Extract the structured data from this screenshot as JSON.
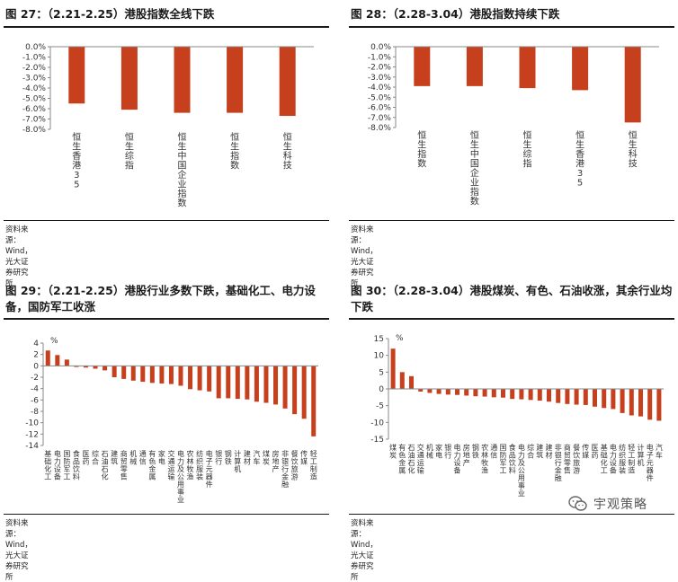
{
  "source_text": "资料来源：Wind，光大证券研究所",
  "watermark": "宇观策略",
  "bar_color": "#c7401e",
  "chart_data": [
    {
      "type": "bar",
      "title": "图 27：（2.21-2.25）港股指数全线下跌",
      "categories": [
        "恒生香港35",
        "恒生综指",
        "恒生中国企业指数",
        "恒生指数",
        "恒生科技"
      ],
      "values": [
        -5.5,
        -6.1,
        -6.4,
        -6.4,
        -6.7
      ],
      "ylim": [
        -8,
        0
      ],
      "yticks": [
        0,
        -1,
        -2,
        -3,
        -4,
        -5,
        -6,
        -7,
        -8
      ],
      "ytick_labels": [
        "0.0%",
        "-1.0%",
        "-2.0%",
        "-3.0%",
        "-4.0%",
        "-5.0%",
        "-6.0%",
        "-7.0%",
        "-8.0%"
      ],
      "xlabel": "",
      "ylabel": ""
    },
    {
      "type": "bar",
      "title": "图 28：（2.28-3.04）港股指数持续下跌",
      "categories": [
        "恒生指数",
        "恒生中国企业指数",
        "恒生综指",
        "恒生香港35",
        "恒生科技"
      ],
      "values": [
        -3.9,
        -3.9,
        -4.1,
        -4.3,
        -7.5
      ],
      "ylim": [
        -8,
        0
      ],
      "yticks": [
        0,
        -1,
        -2,
        -3,
        -4,
        -5,
        -6,
        -7,
        -8
      ],
      "ytick_labels": [
        "0.0%",
        "-1.0%",
        "-2.0%",
        "-3.0%",
        "-4.0%",
        "-5.0%",
        "-6.0%",
        "-7.0%",
        "-8.0%"
      ],
      "xlabel": "",
      "ylabel": ""
    },
    {
      "type": "bar",
      "title": "图 29：（2.21-2.25）港股行业多数下跌，基础化工、电力设备，国防军工收涨",
      "unit": "%",
      "categories": [
        "基础化工",
        "电力设备",
        "国防军工",
        "食品饮料",
        "医药",
        "综合",
        "石油石化",
        "建筑",
        "商贸零售",
        "机械",
        "通信",
        "有色金属",
        "家电",
        "交通运输",
        "电力及公用事业",
        "农林牧渔",
        "纺织服装",
        "电子元器件",
        "银行",
        "钢铁",
        "计算机",
        "建材",
        "汽车",
        "煤炭",
        "房地产",
        "非银行金融",
        "餐饮旅游",
        "传媒",
        "轻工制造"
      ],
      "values": [
        2.7,
        1.9,
        1.1,
        -0.2,
        -0.3,
        -0.5,
        -0.8,
        -2.0,
        -2.3,
        -2.6,
        -2.8,
        -3.0,
        -3.1,
        -3.2,
        -3.5,
        -4.1,
        -4.3,
        -4.5,
        -5.7,
        -5.7,
        -5.8,
        -5.9,
        -6.3,
        -6.5,
        -6.8,
        -7.5,
        -8.5,
        -9.3,
        -12.4
      ],
      "ylim": [
        -14,
        4
      ],
      "yticks": [
        4,
        2,
        0,
        -2,
        -4,
        -6,
        -8,
        -10,
        -12,
        -14
      ],
      "ytick_labels": [
        "4",
        "2",
        "0",
        "-2",
        "-4",
        "-6",
        "-8",
        "-10",
        "-12",
        "-14"
      ],
      "xlabel": "",
      "ylabel": "%"
    },
    {
      "type": "bar",
      "title": "图 30：（2.28-3.04）港股煤炭、有色、石油收涨，其余行业均下跌",
      "unit": "%",
      "categories": [
        "煤炭",
        "有色金属",
        "石油石化",
        "交通运输",
        "机械",
        "家电",
        "银行",
        "电力设备",
        "房地产",
        "钢铁",
        "农林牧渔",
        "通信",
        "国防军工",
        "食品饮料",
        "电力及公用事业",
        "综合",
        "建筑",
        "建材",
        "非银行金融",
        "商贸零售",
        "餐饮旅游",
        "传媒",
        "医药",
        "基础化工",
        "电力设备",
        "纺织服装",
        "轻工制造",
        "计算机",
        "电子元器件",
        "汽车"
      ],
      "values": [
        12.0,
        5.0,
        3.8,
        -0.8,
        -1.2,
        -1.5,
        -1.7,
        -1.8,
        -2.0,
        -2.2,
        -2.3,
        -2.5,
        -2.6,
        -3.0,
        -3.1,
        -3.3,
        -3.5,
        -3.8,
        -4.2,
        -4.5,
        -4.7,
        -4.8,
        -5.3,
        -5.7,
        -6.0,
        -7.2,
        -7.9,
        -8.2,
        -9.2,
        -9.5
      ],
      "ylim": [
        -15,
        15
      ],
      "yticks": [
        15,
        10,
        5,
        0,
        -5,
        -10,
        -15
      ],
      "ytick_labels": [
        "15",
        "10",
        "5",
        "0",
        "-5",
        "-10",
        "-15"
      ],
      "xlabel": "",
      "ylabel": "%"
    }
  ]
}
